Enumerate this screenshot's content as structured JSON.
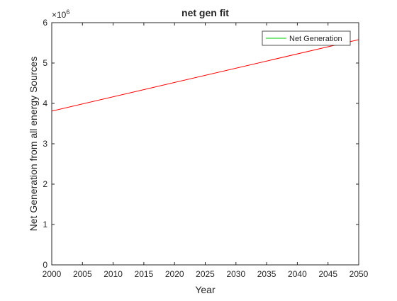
{
  "chart_data": {
    "type": "line",
    "title": "net gen fit",
    "xlabel": "Year",
    "ylabel": "Net Generation from all energy Sources",
    "xlim": [
      2000,
      2050
    ],
    "ylim": [
      0,
      6000000
    ],
    "y_exponent_label": "×10",
    "y_exponent_power": "6",
    "x_ticks": [
      2000,
      2005,
      2010,
      2015,
      2020,
      2025,
      2030,
      2035,
      2040,
      2045,
      2050
    ],
    "y_ticks": [
      0,
      1000000,
      2000000,
      3000000,
      4000000,
      5000000,
      6000000
    ],
    "y_tick_labels": [
      "0",
      "1",
      "2",
      "3",
      "4",
      "5",
      "6"
    ],
    "grid": false,
    "legend_position": "top-right",
    "series": [
      {
        "name": "Net Generation",
        "color": "#00cc00",
        "x": [
          2000,
          2050
        ],
        "y": [
          0,
          0
        ]
      },
      {
        "color": "#ff0000",
        "x": [
          2000,
          2050
        ],
        "y": [
          3810000,
          5580000
        ]
      }
    ]
  }
}
